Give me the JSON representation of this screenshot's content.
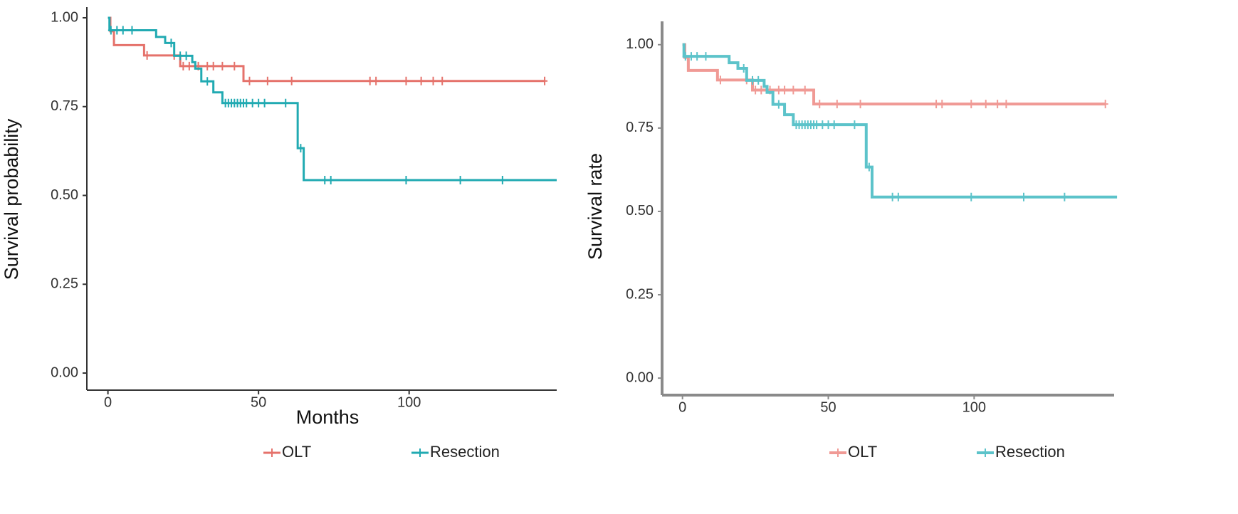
{
  "chart_data": [
    {
      "type": "step",
      "y_label": "Survival probability",
      "x_label": "Months",
      "legend": "bottom",
      "xlim": [
        -7,
        149
      ],
      "ylim": [
        -0.048,
        1.03
      ],
      "xticks": [
        0,
        50,
        100
      ],
      "yticks": [
        {
          "value": 0,
          "label": "0.00"
        },
        {
          "value": 0.25,
          "label": "0.25"
        },
        {
          "value": 0.5,
          "label": "0.50"
        },
        {
          "value": 0.75,
          "label": "0.75"
        },
        {
          "value": 1,
          "label": "1.00"
        }
      ],
      "series": [
        {
          "name": "OLT",
          "color": "#e5726b",
          "x": [
            0,
            0.8,
            0.8,
            2,
            2,
            12,
            12,
            24,
            24,
            45,
            45,
            145
          ],
          "values": [
            1,
            1,
            0.962,
            0.962,
            0.923,
            0.923,
            0.894,
            0.894,
            0.864,
            0.864,
            0.822,
            0.822
          ],
          "censor_x": [
            13,
            22,
            25,
            27,
            30,
            33,
            35,
            38,
            42,
            47,
            53,
            61,
            87,
            89,
            99,
            104,
            108,
            111,
            145
          ],
          "censor_y": [
            0.894,
            0.894,
            0.864,
            0.864,
            0.864,
            0.864,
            0.864,
            0.864,
            0.864,
            0.822,
            0.822,
            0.822,
            0.822,
            0.822,
            0.822,
            0.822,
            0.822,
            0.822,
            0.822
          ]
        },
        {
          "name": "Resection",
          "color": "#21aab2",
          "x": [
            0,
            0.5,
            0.5,
            16,
            16,
            19,
            19,
            22,
            22,
            28,
            28,
            29,
            29,
            31,
            31,
            35,
            35,
            38,
            38,
            63,
            63,
            65,
            65,
            149
          ],
          "values": [
            1,
            1,
            0.965,
            0.965,
            0.946,
            0.946,
            0.929,
            0.929,
            0.893,
            0.893,
            0.875,
            0.875,
            0.857,
            0.857,
            0.821,
            0.821,
            0.79,
            0.79,
            0.76,
            0.76,
            0.633,
            0.633,
            0.543,
            0.543
          ],
          "censor_x": [
            1,
            3,
            5,
            8,
            21,
            24,
            26,
            33,
            39,
            40,
            41,
            42,
            43,
            44,
            45,
            46,
            48,
            50,
            52,
            59,
            64,
            72,
            74,
            99,
            117,
            131
          ],
          "censor_y": [
            0.965,
            0.965,
            0.965,
            0.965,
            0.929,
            0.893,
            0.893,
            0.821,
            0.76,
            0.76,
            0.76,
            0.76,
            0.76,
            0.76,
            0.76,
            0.76,
            0.76,
            0.76,
            0.76,
            0.76,
            0.633,
            0.543,
            0.543,
            0.543,
            0.543,
            0.543
          ]
        }
      ]
    },
    {
      "type": "step",
      "y_label": "Survival rate",
      "legend": "bottom",
      "xlim": [
        -7,
        148
      ],
      "ylim": [
        -0.051,
        1.07
      ],
      "xticks": [
        0,
        50,
        100
      ],
      "yticks": [
        {
          "value": 0,
          "label": "0.00"
        },
        {
          "value": 0.25,
          "label": "0.25"
        },
        {
          "value": 0.5,
          "label": "0.50"
        },
        {
          "value": 0.75,
          "label": "0.75"
        },
        {
          "value": 1,
          "label": "1.00"
        }
      ],
      "series": [
        {
          "name": "OLT",
          "color": "#f09a95",
          "x": [
            0,
            0.8,
            0.8,
            2,
            2,
            12,
            12,
            24,
            24,
            45,
            45,
            145
          ],
          "values": [
            1,
            1,
            0.962,
            0.962,
            0.923,
            0.923,
            0.894,
            0.894,
            0.864,
            0.864,
            0.822,
            0.822
          ],
          "censor_x": [
            13,
            22,
            25,
            27,
            30,
            33,
            35,
            38,
            42,
            47,
            53,
            61,
            87,
            89,
            99,
            104,
            108,
            111,
            145
          ],
          "censor_y": [
            0.894,
            0.894,
            0.864,
            0.864,
            0.864,
            0.864,
            0.864,
            0.864,
            0.864,
            0.822,
            0.822,
            0.822,
            0.822,
            0.822,
            0.822,
            0.822,
            0.822,
            0.822,
            0.822
          ]
        },
        {
          "name": "Resection",
          "color": "#5cc3ca",
          "x": [
            0,
            0.5,
            0.5,
            16,
            16,
            19,
            19,
            22,
            22,
            28,
            28,
            29,
            29,
            31,
            31,
            35,
            35,
            38,
            38,
            63,
            63,
            65,
            65,
            149
          ],
          "values": [
            1,
            1,
            0.965,
            0.965,
            0.946,
            0.946,
            0.929,
            0.929,
            0.893,
            0.893,
            0.875,
            0.875,
            0.857,
            0.857,
            0.821,
            0.821,
            0.79,
            0.79,
            0.76,
            0.76,
            0.633,
            0.633,
            0.543,
            0.543
          ],
          "censor_x": [
            1,
            3,
            5,
            8,
            21,
            24,
            26,
            33,
            39,
            40,
            41,
            42,
            43,
            44,
            45,
            46,
            48,
            50,
            52,
            59,
            64,
            72,
            74,
            99,
            117,
            131
          ],
          "censor_y": [
            0.965,
            0.965,
            0.965,
            0.965,
            0.929,
            0.893,
            0.893,
            0.821,
            0.76,
            0.76,
            0.76,
            0.76,
            0.76,
            0.76,
            0.76,
            0.76,
            0.76,
            0.76,
            0.76,
            0.76,
            0.633,
            0.543,
            0.543,
            0.543,
            0.543,
            0.543
          ]
        }
      ]
    }
  ]
}
